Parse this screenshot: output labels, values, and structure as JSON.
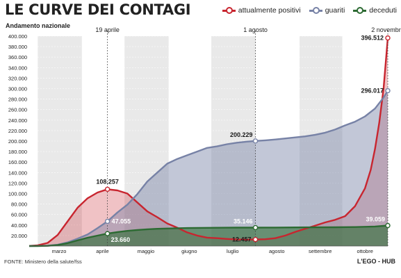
{
  "header": {
    "title": "LE CURVE DEI CONTAGI",
    "subtitle": "Andamento nazionale"
  },
  "footer": {
    "source": "FONTE: Ministero della salute/fss",
    "credit": "L'EGO - HUB"
  },
  "colors": {
    "positivi": "#c8252f",
    "guariti": "#7782a6",
    "deceduti": "#2c6a32",
    "band_shade": "#e9e9e9"
  },
  "chart_data": {
    "type": "area",
    "title": "LE CURVE DEI CONTAGI",
    "subtitle": "Andamento nazionale",
    "xlabel": "",
    "ylabel": "",
    "ylim": [
      0,
      400000
    ],
    "y_ticks": [
      20000,
      40000,
      60000,
      80000,
      100000,
      120000,
      140000,
      160000,
      180000,
      200000,
      220000,
      240000,
      260000,
      280000,
      300000,
      320000,
      340000,
      360000,
      380000,
      400000
    ],
    "y_tick_labels": [
      "20.000",
      "40.000",
      "60.000",
      "80.000",
      "100.000",
      "120.000",
      "140.000",
      "160.000",
      "180.000",
      "200.000",
      "220.000",
      "240.000",
      "260.000",
      "280.000",
      "300.000",
      "320.000",
      "340.000",
      "360.000",
      "380.000",
      "400.000"
    ],
    "x_range": [
      "2020-02-24",
      "2020-11-02"
    ],
    "months": [
      {
        "label": "marzo",
        "start": "2020-03-01",
        "end": "2020-03-31"
      },
      {
        "label": "aprile",
        "start": "2020-04-01",
        "end": "2020-04-30"
      },
      {
        "label": "maggio",
        "start": "2020-05-01",
        "end": "2020-05-31"
      },
      {
        "label": "giugno",
        "start": "2020-06-01",
        "end": "2020-06-30"
      },
      {
        "label": "luglio",
        "start": "2020-07-01",
        "end": "2020-07-31"
      },
      {
        "label": "agosto",
        "start": "2020-08-01",
        "end": "2020-08-31"
      },
      {
        "label": "settembre",
        "start": "2020-09-01",
        "end": "2020-09-30"
      },
      {
        "label": "ottobre",
        "start": "2020-10-01",
        "end": "2020-11-02"
      }
    ],
    "markers": [
      {
        "label": "19 aprile",
        "date": "2020-04-19"
      },
      {
        "label": "1 agosto",
        "date": "2020-08-01"
      },
      {
        "label": "2 novembre",
        "date": "2020-11-02"
      }
    ],
    "series": [
      {
        "name": "attualmente positivi",
        "key": "positivi",
        "points": [
          [
            "2020-02-24",
            200
          ],
          [
            "2020-03-01",
            1500
          ],
          [
            "2020-03-08",
            6000
          ],
          [
            "2020-03-15",
            21000
          ],
          [
            "2020-03-22",
            47000
          ],
          [
            "2020-03-29",
            73000
          ],
          [
            "2020-04-05",
            91000
          ],
          [
            "2020-04-12",
            102000
          ],
          [
            "2020-04-19",
            108257
          ],
          [
            "2020-04-26",
            106000
          ],
          [
            "2020-05-03",
            100000
          ],
          [
            "2020-05-10",
            83000
          ],
          [
            "2020-05-17",
            66000
          ],
          [
            "2020-05-24",
            55000
          ],
          [
            "2020-05-31",
            43000
          ],
          [
            "2020-06-07",
            35000
          ],
          [
            "2020-06-14",
            26000
          ],
          [
            "2020-06-21",
            20000
          ],
          [
            "2020-06-28",
            16000
          ],
          [
            "2020-07-05",
            15000
          ],
          [
            "2020-07-12",
            13500
          ],
          [
            "2020-07-19",
            12500
          ],
          [
            "2020-07-26",
            12300
          ],
          [
            "2020-08-01",
            12457
          ],
          [
            "2020-08-08",
            13000
          ],
          [
            "2020-08-15",
            15000
          ],
          [
            "2020-08-22",
            20000
          ],
          [
            "2020-08-29",
            27000
          ],
          [
            "2020-09-05",
            33000
          ],
          [
            "2020-09-12",
            39000
          ],
          [
            "2020-09-19",
            45000
          ],
          [
            "2020-09-26",
            50000
          ],
          [
            "2020-10-03",
            57000
          ],
          [
            "2020-10-10",
            76000
          ],
          [
            "2020-10-17",
            110000
          ],
          [
            "2020-10-21",
            145000
          ],
          [
            "2020-10-24",
            185000
          ],
          [
            "2020-10-27",
            235000
          ],
          [
            "2020-10-30",
            300000
          ],
          [
            "2020-11-02",
            396512
          ]
        ]
      },
      {
        "name": "guariti",
        "key": "guariti",
        "points": [
          [
            "2020-02-24",
            0
          ],
          [
            "2020-03-01",
            300
          ],
          [
            "2020-03-08",
            700
          ],
          [
            "2020-03-15",
            2500
          ],
          [
            "2020-03-22",
            7000
          ],
          [
            "2020-03-29",
            14000
          ],
          [
            "2020-04-05",
            22000
          ],
          [
            "2020-04-12",
            34000
          ],
          [
            "2020-04-19",
            47055
          ],
          [
            "2020-04-26",
            64000
          ],
          [
            "2020-05-03",
            79000
          ],
          [
            "2020-05-10",
            99000
          ],
          [
            "2020-05-17",
            123000
          ],
          [
            "2020-05-24",
            140000
          ],
          [
            "2020-05-31",
            157000
          ],
          [
            "2020-06-07",
            166000
          ],
          [
            "2020-06-14",
            173000
          ],
          [
            "2020-06-21",
            180000
          ],
          [
            "2020-06-28",
            187000
          ],
          [
            "2020-07-05",
            190000
          ],
          [
            "2020-07-12",
            194000
          ],
          [
            "2020-07-19",
            197000
          ],
          [
            "2020-07-26",
            199000
          ],
          [
            "2020-08-01",
            200229
          ],
          [
            "2020-08-08",
            201500
          ],
          [
            "2020-08-15",
            203000
          ],
          [
            "2020-08-22",
            205000
          ],
          [
            "2020-08-29",
            207000
          ],
          [
            "2020-09-05",
            209000
          ],
          [
            "2020-09-12",
            212000
          ],
          [
            "2020-09-19",
            216000
          ],
          [
            "2020-09-26",
            222000
          ],
          [
            "2020-10-03",
            230000
          ],
          [
            "2020-10-10",
            237000
          ],
          [
            "2020-10-17",
            247000
          ],
          [
            "2020-10-24",
            262000
          ],
          [
            "2020-10-30",
            283000
          ],
          [
            "2020-11-02",
            296017
          ]
        ]
      },
      {
        "name": "deceduti",
        "key": "deceduti",
        "points": [
          [
            "2020-02-24",
            7
          ],
          [
            "2020-03-01",
            34
          ],
          [
            "2020-03-08",
            366
          ],
          [
            "2020-03-15",
            1809
          ],
          [
            "2020-03-22",
            5476
          ],
          [
            "2020-03-29",
            10779
          ],
          [
            "2020-04-05",
            15887
          ],
          [
            "2020-04-12",
            19899
          ],
          [
            "2020-04-19",
            23660
          ],
          [
            "2020-04-26",
            26644
          ],
          [
            "2020-05-03",
            28884
          ],
          [
            "2020-05-10",
            30560
          ],
          [
            "2020-05-17",
            31908
          ],
          [
            "2020-05-24",
            32785
          ],
          [
            "2020-05-31",
            33415
          ],
          [
            "2020-06-07",
            33846
          ],
          [
            "2020-06-14",
            34301
          ],
          [
            "2020-06-21",
            34634
          ],
          [
            "2020-06-28",
            34744
          ],
          [
            "2020-07-05",
            34861
          ],
          [
            "2020-07-12",
            34954
          ],
          [
            "2020-07-19",
            35045
          ],
          [
            "2020-07-26",
            35107
          ],
          [
            "2020-08-01",
            35146
          ],
          [
            "2020-08-15",
            35231
          ],
          [
            "2020-08-29",
            35472
          ],
          [
            "2020-09-12",
            35610
          ],
          [
            "2020-09-26",
            35818
          ],
          [
            "2020-10-10",
            36166
          ],
          [
            "2020-10-24",
            37210
          ],
          [
            "2020-11-02",
            39059
          ]
        ]
      }
    ],
    "annotations": [
      {
        "series": "positivi",
        "date": "2020-04-19",
        "value": 108257,
        "label": "108.257",
        "pos": "above"
      },
      {
        "series": "guariti",
        "date": "2020-04-19",
        "value": 47055,
        "label": "47.055",
        "pos": "right"
      },
      {
        "series": "deceduti",
        "date": "2020-04-19",
        "value": 23660,
        "label": "23.660",
        "pos": "below-right"
      },
      {
        "series": "guariti",
        "date": "2020-08-01",
        "value": 200229,
        "label": "200.229",
        "pos": "above-left"
      },
      {
        "series": "deceduti",
        "date": "2020-08-01",
        "value": 35146,
        "label": "35.146",
        "pos": "above-left"
      },
      {
        "series": "positivi",
        "date": "2020-08-01",
        "value": 12457,
        "label": "12.457",
        "pos": "left"
      },
      {
        "series": "positivi",
        "date": "2020-11-02",
        "value": 396512,
        "label": "396.512",
        "pos": "left"
      },
      {
        "series": "guariti",
        "date": "2020-11-02",
        "value": 296017,
        "label": "296.017",
        "pos": "left"
      },
      {
        "series": "deceduti",
        "date": "2020-11-02",
        "value": 39059,
        "label": "39.059",
        "pos": "above-left"
      }
    ]
  }
}
